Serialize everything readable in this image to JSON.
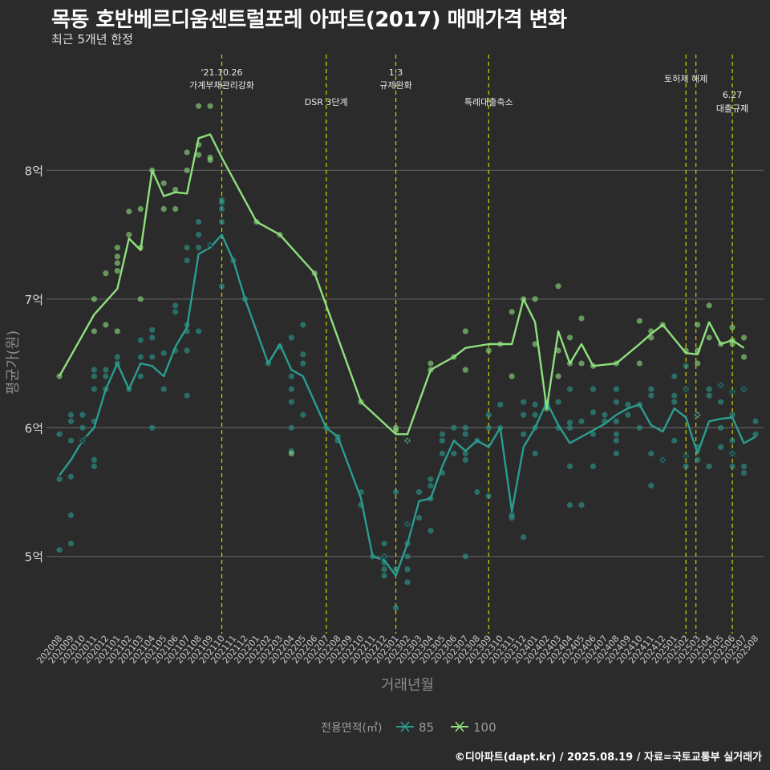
{
  "title": "목동 호반베르디움센트럴포레 아파트(2017) 매매가격 변화",
  "subtitle": "최근 5개년 한정",
  "caption": "©디아파트(dapt.kr) / 2025.08.19 / 자료=국토교통부 실거래가",
  "chart_data": {
    "type": "line",
    "xlabel": "거래년월",
    "ylabel": "평균가(원)",
    "ylim": [
      4.4,
      8.9
    ],
    "yticks": [
      5,
      6,
      7,
      8
    ],
    "ytick_labels": [
      "5억",
      "6억",
      "7억",
      "8억"
    ],
    "grid": true,
    "legend_title": "전용면적(㎡)",
    "legend_position": "bottom",
    "months": [
      "202008",
      "202009",
      "202010",
      "202011",
      "202012",
      "202101",
      "202102",
      "202103",
      "202104",
      "202105",
      "202106",
      "202107",
      "202108",
      "202109",
      "202110",
      "202111",
      "202112",
      "202201",
      "202202",
      "202203",
      "202204",
      "202205",
      "202206",
      "202207",
      "202208",
      "202209",
      "202210",
      "202211",
      "202212",
      "202301",
      "202302",
      "202303",
      "202304",
      "202305",
      "202306",
      "202307",
      "202308",
      "202309",
      "202310",
      "202311",
      "202312",
      "202401",
      "202402",
      "202403",
      "202404",
      "202405",
      "202406",
      "202407",
      "202408",
      "202409",
      "202410",
      "202411",
      "202412",
      "202501",
      "202502",
      "202503",
      "202504",
      "202505",
      "202506",
      "202507",
      "202508"
    ],
    "events": [
      {
        "month": "202110",
        "label": [
          "'21.10.26",
          "가계부채관리강화"
        ]
      },
      {
        "month": "202207",
        "label": [
          "DSR 3단계"
        ]
      },
      {
        "month": "202301",
        "label": [
          "1.3",
          "규제완화"
        ]
      },
      {
        "month": "202309",
        "label": [
          "특례대출축소"
        ]
      },
      {
        "month": "202502",
        "label": [
          "토허제 해제"
        ]
      },
      {
        "month": "202503",
        "label": []
      },
      {
        "month": "202506",
        "label": [
          "6.27",
          "대출규제"
        ]
      }
    ],
    "series": [
      {
        "name": "85",
        "color": "#2a9d8f",
        "values": [
          5.63,
          5.75,
          5.9,
          6.0,
          6.3,
          6.5,
          6.3,
          6.5,
          6.48,
          6.4,
          6.63,
          6.78,
          7.35,
          7.4,
          7.5,
          7.3,
          7.0,
          null,
          6.5,
          6.65,
          6.45,
          6.4,
          null,
          6.0,
          5.93,
          null,
          5.45,
          5.0,
          4.97,
          4.85,
          5.1,
          5.43,
          5.45,
          5.7,
          5.9,
          5.82,
          5.9,
          5.85,
          6.0,
          5.35,
          5.85,
          6.0,
          6.2,
          6.02,
          5.88,
          5.93,
          5.98,
          6.03,
          6.1,
          6.15,
          6.18,
          6.02,
          5.97,
          6.15,
          6.08,
          5.8,
          6.05,
          6.07,
          6.08,
          5.88,
          5.93
        ],
        "trades": [
          [
            0,
            5.6
          ],
          [
            0,
            5.05
          ],
          [
            0,
            5.95
          ],
          [
            1,
            5.1
          ],
          [
            1,
            5.32
          ],
          [
            1,
            5.62
          ],
          [
            1,
            5.9
          ],
          [
            1,
            6.05
          ],
          [
            1,
            6.1
          ],
          [
            2,
            5.9
          ],
          [
            2,
            6.0
          ],
          [
            2,
            6.1
          ],
          [
            3,
            6.05
          ],
          [
            3,
            5.7
          ],
          [
            3,
            5.75
          ],
          [
            3,
            6.3
          ],
          [
            3,
            6.4
          ],
          [
            3,
            6.45
          ],
          [
            4,
            6.3
          ],
          [
            4,
            6.45
          ],
          [
            4,
            6.4
          ],
          [
            5,
            6.55
          ],
          [
            5,
            6.5
          ],
          [
            6,
            6.3
          ],
          [
            7,
            6.4
          ],
          [
            7,
            6.55
          ],
          [
            7,
            6.68
          ],
          [
            8,
            6.7
          ],
          [
            8,
            6.76
          ],
          [
            8,
            6.0
          ],
          [
            8,
            6.55
          ],
          [
            9,
            6.3
          ],
          [
            9,
            6.58
          ],
          [
            10,
            6.6
          ],
          [
            10,
            6.9
          ],
          [
            10,
            6.95
          ],
          [
            11,
            6.25
          ],
          [
            11,
            6.6
          ],
          [
            11,
            6.75
          ],
          [
            11,
            6.8
          ],
          [
            11,
            7.3
          ],
          [
            11,
            7.4
          ],
          [
            12,
            7.4
          ],
          [
            12,
            7.6
          ],
          [
            12,
            7.5
          ],
          [
            12,
            6.75
          ],
          [
            13,
            7.42
          ],
          [
            14,
            7.1
          ],
          [
            14,
            7.6
          ],
          [
            14,
            7.7
          ],
          [
            14,
            7.75
          ],
          [
            14,
            7.77
          ],
          [
            15,
            7.3
          ],
          [
            16,
            7.0
          ],
          [
            18,
            6.5
          ],
          [
            19,
            6.63
          ],
          [
            20,
            6.7
          ],
          [
            20,
            6.3
          ],
          [
            20,
            6.4
          ],
          [
            20,
            6.2
          ],
          [
            20,
            6.0
          ],
          [
            20,
            5.82
          ],
          [
            21,
            6.1
          ],
          [
            21,
            6.5
          ],
          [
            21,
            6.57
          ],
          [
            21,
            6.8
          ],
          [
            23,
            6.0
          ],
          [
            24,
            5.93
          ],
          [
            24,
            5.9
          ],
          [
            26,
            5.5
          ],
          [
            26,
            5.4
          ],
          [
            27,
            5.0
          ],
          [
            28,
            5.1
          ],
          [
            28,
            5.0
          ],
          [
            28,
            4.95
          ],
          [
            28,
            4.9
          ],
          [
            28,
            4.85
          ],
          [
            29,
            4.6
          ],
          [
            29,
            4.9
          ],
          [
            29,
            5.5
          ],
          [
            30,
            5.25
          ],
          [
            30,
            5.1
          ],
          [
            30,
            5.0
          ],
          [
            30,
            4.9
          ],
          [
            30,
            4.8
          ],
          [
            31,
            5.5
          ],
          [
            31,
            5.3
          ],
          [
            32,
            5.55
          ],
          [
            32,
            5.6
          ],
          [
            32,
            5.45
          ],
          [
            32,
            5.2
          ],
          [
            33,
            5.65
          ],
          [
            33,
            5.8
          ],
          [
            33,
            5.9
          ],
          [
            33,
            5.95
          ],
          [
            34,
            6.0
          ],
          [
            34,
            5.8
          ],
          [
            35,
            5.8
          ],
          [
            35,
            5.75
          ],
          [
            35,
            5.95
          ],
          [
            35,
            6.0
          ],
          [
            35,
            5.0
          ],
          [
            36,
            5.9
          ],
          [
            36,
            5.5
          ],
          [
            37,
            6.1
          ],
          [
            37,
            6.0
          ],
          [
            37,
            5.47
          ],
          [
            38,
            6.0
          ],
          [
            38,
            6.18
          ],
          [
            39,
            5.3
          ],
          [
            39,
            5.32
          ],
          [
            40,
            5.95
          ],
          [
            40,
            6.2
          ],
          [
            40,
            6.1
          ],
          [
            40,
            5.15
          ],
          [
            41,
            6.0
          ],
          [
            41,
            6.1
          ],
          [
            41,
            5.8
          ],
          [
            41,
            6.18
          ],
          [
            42,
            6.2
          ],
          [
            42,
            6.18
          ],
          [
            43,
            6.0
          ],
          [
            43,
            6.2
          ],
          [
            44,
            5.7
          ],
          [
            44,
            5.4
          ],
          [
            44,
            6.0
          ],
          [
            44,
            6.3
          ],
          [
            44,
            6.04
          ],
          [
            45,
            5.4
          ],
          [
            45,
            6.05
          ],
          [
            46,
            6.3
          ],
          [
            46,
            5.95
          ],
          [
            46,
            6.12
          ],
          [
            46,
            5.7
          ],
          [
            47,
            6.1
          ],
          [
            47,
            6.05
          ],
          [
            48,
            6.2
          ],
          [
            48,
            6.05
          ],
          [
            48,
            5.95
          ],
          [
            48,
            5.8
          ],
          [
            48,
            5.9
          ],
          [
            48,
            6.3
          ],
          [
            49,
            6.18
          ],
          [
            49,
            6.1
          ],
          [
            50,
            6.18
          ],
          [
            50,
            6.0
          ],
          [
            51,
            6.25
          ],
          [
            51,
            5.55
          ],
          [
            51,
            5.8
          ],
          [
            51,
            6.3
          ],
          [
            52,
            5.75
          ],
          [
            53,
            6.2
          ],
          [
            53,
            6.4
          ],
          [
            53,
            6.25
          ],
          [
            53,
            5.9
          ],
          [
            54,
            6.3
          ],
          [
            54,
            5.78
          ],
          [
            54,
            5.7
          ],
          [
            54,
            6.48
          ],
          [
            55,
            5.75
          ],
          [
            55,
            5.85
          ],
          [
            56,
            6.25
          ],
          [
            56,
            6.3
          ],
          [
            56,
            5.7
          ],
          [
            57,
            6.2
          ],
          [
            57,
            6.33
          ],
          [
            57,
            6.0
          ],
          [
            57,
            5.85
          ],
          [
            58,
            6.28
          ],
          [
            58,
            5.8
          ],
          [
            58,
            5.7
          ],
          [
            58,
            6.1
          ],
          [
            58,
            5.9
          ],
          [
            59,
            5.65
          ],
          [
            59,
            5.7
          ],
          [
            59,
            6.3
          ],
          [
            60,
            5.95
          ],
          [
            60,
            6.05
          ]
        ],
        "markers": [
          [
            2,
            5.9
          ],
          [
            13,
            7.42
          ],
          [
            28,
            5.0
          ],
          [
            30,
            5.25
          ],
          [
            35,
            5.9
          ],
          [
            52,
            5.75
          ],
          [
            54,
            5.78
          ],
          [
            54,
            6.3
          ],
          [
            57,
            6.33
          ],
          [
            58,
            6.28
          ],
          [
            58,
            5.8
          ],
          [
            59,
            6.3
          ]
        ]
      },
      {
        "name": "100",
        "color": "#8ee07d",
        "values": [
          6.4,
          null,
          null,
          6.88,
          6.98,
          7.08,
          7.47,
          7.38,
          8.0,
          7.8,
          7.83,
          7.82,
          8.25,
          8.28,
          8.1,
          null,
          null,
          7.6,
          null,
          7.5,
          null,
          null,
          7.2,
          null,
          null,
          null,
          6.2,
          null,
          null,
          5.95,
          5.95,
          null,
          6.45,
          null,
          6.55,
          6.62,
          null,
          6.65,
          6.65,
          6.65,
          7.0,
          6.82,
          6.15,
          6.75,
          6.5,
          6.65,
          6.48,
          null,
          6.5,
          null,
          6.65,
          6.73,
          6.8,
          null,
          6.58,
          6.57,
          6.82,
          6.65,
          6.68,
          6.62,
          null
        ],
        "trades": [
          [
            0,
            6.4
          ],
          [
            3,
            6.75
          ],
          [
            3,
            7.0
          ],
          [
            4,
            7.2
          ],
          [
            4,
            6.8
          ],
          [
            5,
            6.75
          ],
          [
            5,
            7.22
          ],
          [
            5,
            7.28
          ],
          [
            5,
            7.33
          ],
          [
            5,
            7.4
          ],
          [
            6,
            7.68
          ],
          [
            6,
            7.5
          ],
          [
            7,
            7.0
          ],
          [
            7,
            7.4
          ],
          [
            7,
            7.7
          ],
          [
            8,
            8.0
          ],
          [
            9,
            7.9
          ],
          [
            9,
            7.7
          ],
          [
            10,
            7.85
          ],
          [
            10,
            7.7
          ],
          [
            11,
            8.14
          ],
          [
            11,
            8.0
          ],
          [
            12,
            8.5
          ],
          [
            12,
            8.2
          ],
          [
            12,
            8.12
          ],
          [
            13,
            8.5
          ],
          [
            13,
            8.08
          ],
          [
            13,
            8.1
          ],
          [
            17,
            7.6
          ],
          [
            19,
            7.5
          ],
          [
            20,
            5.8
          ],
          [
            22,
            7.2
          ],
          [
            26,
            6.2
          ],
          [
            29,
            6.0
          ],
          [
            29,
            5.98
          ],
          [
            30,
            5.9
          ],
          [
            32,
            6.45
          ],
          [
            32,
            6.5
          ],
          [
            34,
            6.55
          ],
          [
            35,
            6.75
          ],
          [
            35,
            6.45
          ],
          [
            37,
            6.6
          ],
          [
            38,
            6.65
          ],
          [
            39,
            6.9
          ],
          [
            39,
            6.4
          ],
          [
            40,
            7.0
          ],
          [
            41,
            7.0
          ],
          [
            41,
            6.65
          ],
          [
            42,
            6.15
          ],
          [
            43,
            7.1
          ],
          [
            43,
            6.4
          ],
          [
            43,
            6.6
          ],
          [
            44,
            6.7
          ],
          [
            44,
            6.5
          ],
          [
            45,
            6.85
          ],
          [
            45,
            6.5
          ],
          [
            46,
            6.48
          ],
          [
            48,
            6.5
          ],
          [
            50,
            6.5
          ],
          [
            50,
            6.83
          ],
          [
            51,
            6.75
          ],
          [
            51,
            6.7
          ],
          [
            52,
            6.8
          ],
          [
            54,
            6.6
          ],
          [
            55,
            6.1
          ],
          [
            55,
            6.5
          ],
          [
            55,
            6.6
          ],
          [
            55,
            6.8
          ],
          [
            56,
            6.95
          ],
          [
            56,
            6.7
          ],
          [
            57,
            6.65
          ],
          [
            58,
            6.78
          ],
          [
            58,
            6.65
          ],
          [
            58,
            6.68
          ],
          [
            59,
            6.7
          ],
          [
            59,
            6.55
          ]
        ],
        "markers": [
          [
            30,
            5.9
          ],
          [
            55,
            6.1
          ]
        ]
      }
    ]
  }
}
